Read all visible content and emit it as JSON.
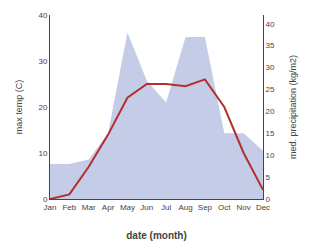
{
  "chart_data": {
    "type": "line",
    "categories": [
      "Jan",
      "Feb",
      "Mar",
      "Apr",
      "May",
      "Jun",
      "Jul",
      "Aug",
      "Sep",
      "Oct",
      "Nov",
      "Dec"
    ],
    "series": [
      {
        "type": "area",
        "color": "#c5cce8",
        "axis": "y2",
        "values": [
          8,
          8,
          9,
          15,
          38,
          27,
          22,
          37,
          37,
          15,
          15,
          11
        ]
      },
      {
        "type": "line",
        "color": "#b03030",
        "values": [
          0,
          1,
          7,
          14,
          22,
          25,
          25,
          24.5,
          26,
          20,
          10,
          2
        ]
      }
    ],
    "xlabel": "date (month)",
    "ylabel": "max temp (C)",
    "y2label": "med. precipitation (kg/m2)",
    "ylim": [
      0,
      40
    ],
    "yticks": [
      0,
      10,
      20,
      30,
      40
    ],
    "y2lim": [
      0,
      42
    ],
    "y2ticks": [
      0,
      5,
      10,
      15,
      20,
      25,
      30,
      35,
      40
    ],
    "grid": false
  }
}
